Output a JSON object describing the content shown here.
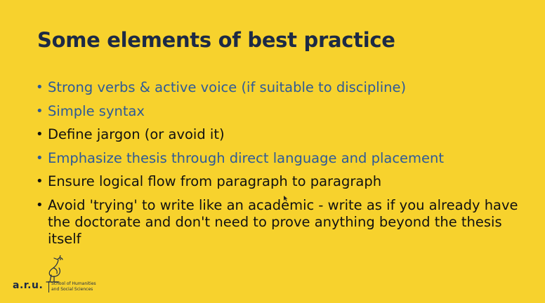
{
  "slide": {
    "title": "Some elements of best practice",
    "bullets": [
      {
        "text": "Strong verbs & active voice (if suitable to discipline)",
        "color": "#2d5a99"
      },
      {
        "text": "Simple syntax",
        "color": "#2d5a99"
      },
      {
        "text": "Define jargon (or avoid it)",
        "color": "#111111"
      },
      {
        "text": "Emphasize thesis through direct language and placement",
        "color": "#2d5a99"
      },
      {
        "text": "Ensure logical flow from paragraph to paragraph",
        "color": "#111111"
      },
      {
        "text": "Avoid 'trying' to write like an academic - write as if you already have the doctorate and don't need to prove anything beyond the thesis itself",
        "color": "#111111"
      }
    ],
    "bullet_glyph": "•"
  },
  "logo": {
    "wordmark": "a.r.u.",
    "school": "School of Humanities\nand Social Sciences",
    "icon": "heron-icon"
  },
  "colors": {
    "background": "#f7d22d",
    "title": "#1d2a45",
    "accent_blue": "#2d5a99",
    "text_black": "#111111"
  }
}
